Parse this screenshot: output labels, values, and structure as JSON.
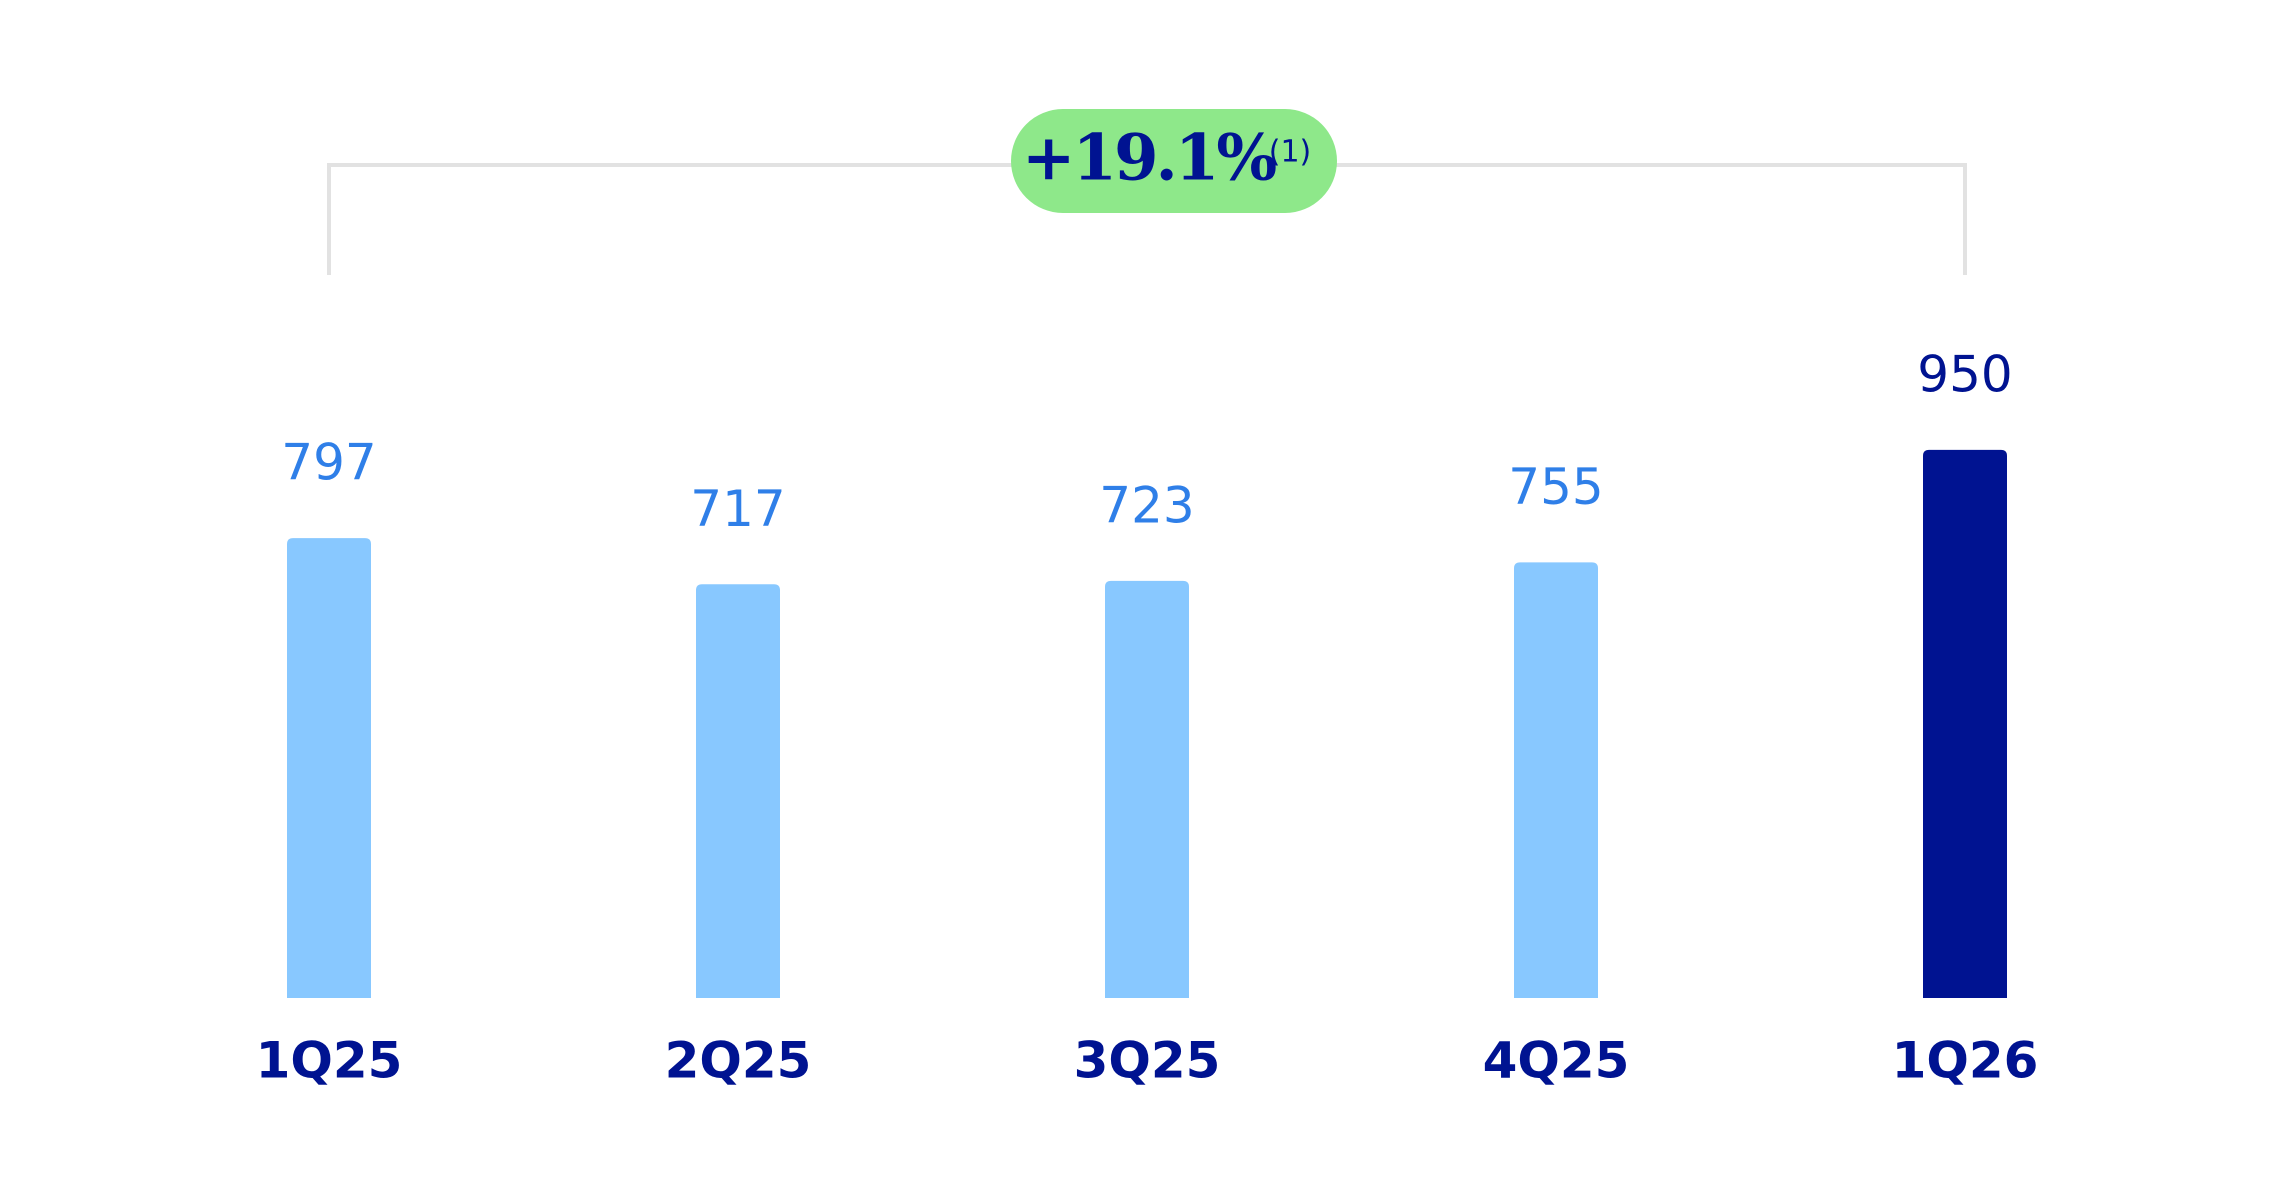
{
  "chart_data": {
    "type": "bar",
    "categories": [
      "1Q25",
      "2Q25",
      "3Q25",
      "4Q25",
      "1Q26"
    ],
    "values": [
      797,
      717,
      723,
      755,
      950
    ],
    "colors": [
      "#88c8ff",
      "#88c8ff",
      "#88c8ff",
      "#88c8ff",
      "#001391"
    ],
    "value_label_colors": [
      "#2f7fe8",
      "#2f7fe8",
      "#2f7fe8",
      "#2f7fe8",
      "#001391"
    ],
    "ylim": [
      0,
      1000
    ],
    "annotation": {
      "text": "+19.1%",
      "note": "(1)"
    }
  }
}
